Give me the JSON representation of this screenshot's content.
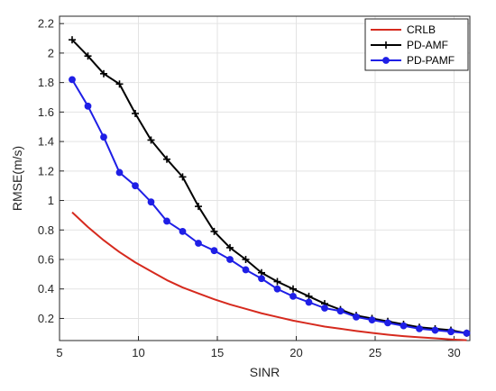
{
  "chart_data": {
    "type": "line",
    "xlabel": "SINR",
    "ylabel": "RMSE(m/s)",
    "xlim": [
      5,
      31
    ],
    "ylim": [
      0.05,
      2.25
    ],
    "xticks": [
      5,
      10,
      15,
      20,
      25,
      30
    ],
    "yticks": [
      0.2,
      0.4,
      0.6,
      0.8,
      1,
      1.2,
      1.4,
      1.6,
      1.8,
      2,
      2.2
    ],
    "grid": true,
    "legend_position": "top-right",
    "series": [
      {
        "name": "CRLB",
        "color": "#d62a1e",
        "marker": "none",
        "x": [
          5.8,
          6.8,
          7.8,
          8.8,
          9.8,
          10.8,
          11.8,
          12.8,
          13.8,
          14.8,
          15.8,
          16.8,
          17.8,
          18.8,
          19.8,
          20.8,
          21.8,
          22.8,
          23.8,
          24.8,
          25.8,
          26.8,
          27.8,
          28.8,
          29.8,
          30.8
        ],
        "values": [
          0.92,
          0.82,
          0.73,
          0.65,
          0.58,
          0.52,
          0.46,
          0.41,
          0.37,
          0.33,
          0.295,
          0.265,
          0.235,
          0.21,
          0.185,
          0.165,
          0.145,
          0.13,
          0.115,
          0.102,
          0.09,
          0.08,
          0.072,
          0.065,
          0.058,
          0.052
        ]
      },
      {
        "name": "PD-AMF",
        "color": "#000000",
        "marker": "plus",
        "x": [
          5.8,
          6.8,
          7.8,
          8.8,
          9.8,
          10.8,
          11.8,
          12.8,
          13.8,
          14.8,
          15.8,
          16.8,
          17.8,
          18.8,
          19.8,
          20.8,
          21.8,
          22.8,
          23.8,
          24.8,
          25.8,
          26.8,
          27.8,
          28.8,
          29.8,
          30.8
        ],
        "values": [
          2.09,
          1.98,
          1.86,
          1.79,
          1.59,
          1.41,
          1.28,
          1.16,
          0.96,
          0.79,
          0.68,
          0.6,
          0.51,
          0.45,
          0.4,
          0.35,
          0.3,
          0.26,
          0.22,
          0.2,
          0.18,
          0.16,
          0.14,
          0.13,
          0.12,
          0.1
        ]
      },
      {
        "name": "PD-PAMF",
        "color": "#1f1fe6",
        "marker": "circle",
        "x": [
          5.8,
          6.8,
          7.8,
          8.8,
          9.8,
          10.8,
          11.8,
          12.8,
          13.8,
          14.8,
          15.8,
          16.8,
          17.8,
          18.8,
          19.8,
          20.8,
          21.8,
          22.8,
          23.8,
          24.8,
          25.8,
          26.8,
          27.8,
          28.8,
          29.8,
          30.8
        ],
        "values": [
          1.82,
          1.64,
          1.43,
          1.19,
          1.1,
          0.99,
          0.86,
          0.79,
          0.71,
          0.66,
          0.6,
          0.53,
          0.47,
          0.4,
          0.35,
          0.31,
          0.27,
          0.25,
          0.21,
          0.19,
          0.17,
          0.15,
          0.13,
          0.12,
          0.11,
          0.1
        ]
      }
    ]
  }
}
